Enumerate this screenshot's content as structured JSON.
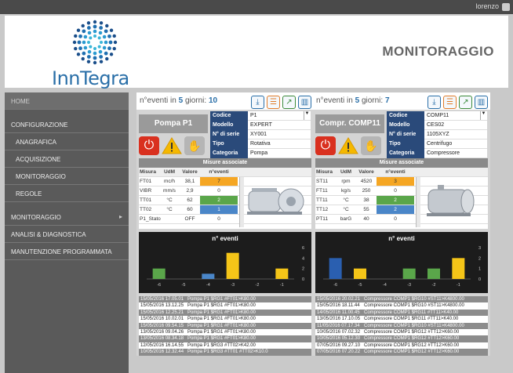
{
  "topbar": {
    "user": "lorenzo"
  },
  "header": {
    "logo_text": "InnTegra",
    "title": "MONITORAGGIO"
  },
  "sidebar": {
    "items": [
      {
        "label": "HOME",
        "sub": false,
        "active": true,
        "arrow": false
      },
      {
        "label": "CONFIGURAZIONE",
        "sub": false,
        "active": false,
        "arrow": false
      },
      {
        "label": "ANAGRAFICA",
        "sub": true,
        "active": false,
        "arrow": false
      },
      {
        "label": "ACQUISIZIONE",
        "sub": true,
        "active": false,
        "arrow": false
      },
      {
        "label": "MONITORAGGIO",
        "sub": true,
        "active": false,
        "arrow": false
      },
      {
        "label": "REGOLE",
        "sub": true,
        "active": false,
        "arrow": false
      },
      {
        "label": "MONITORAGGIO",
        "sub": false,
        "active": false,
        "arrow": true
      },
      {
        "label": "ANALISI & DIAGNOSTICA",
        "sub": false,
        "active": false,
        "arrow": false
      },
      {
        "label": "MANUTENZIONE PROGRAMMATA",
        "sub": false,
        "active": false,
        "arrow": false
      }
    ]
  },
  "panels": [
    {
      "events_prefix": "n°eventi in",
      "days": "5",
      "days_word": "giorni:",
      "count": "10",
      "device": "Pompa P1",
      "info": [
        {
          "k": "Codice",
          "v": "P1",
          "dd": true
        },
        {
          "k": "Modello",
          "v": "EXPERT"
        },
        {
          "k": "N° di serie",
          "v": "XY001"
        },
        {
          "k": "Tipo",
          "v": "Rotativa"
        },
        {
          "k": "Categoria",
          "v": "Pompa"
        }
      ],
      "misure_title": "Misure associate",
      "headers": [
        "Misura",
        "UdM",
        "Valore",
        "n°eventi"
      ],
      "rows": [
        {
          "m": "FT01",
          "u": "mc/h",
          "v": "38,1",
          "n": "7",
          "c": "#f5a623"
        },
        {
          "m": "VIBR",
          "u": "mm/s",
          "v": "2,9",
          "n": "0",
          "c": "#fff"
        },
        {
          "m": "TT01",
          "u": "°C",
          "v": "62",
          "n": "2",
          "c": "#5aa64a"
        },
        {
          "m": "TT02",
          "u": "°C",
          "v": "60",
          "n": "1",
          "c": "#4a86c8"
        },
        {
          "m": "P1_Stato",
          "u": "",
          "v": "OFF",
          "n": "0",
          "c": "#fff"
        }
      ],
      "chart_data": {
        "type": "bar",
        "title": "n° eventi",
        "categories": [
          "-6",
          "-5",
          "-4",
          "-3",
          "-2",
          "-1"
        ],
        "values": [
          2,
          0,
          1,
          5,
          0,
          2
        ],
        "colors": [
          "#5aa64a",
          "#5aa64a",
          "#4a86c8",
          "#f5c518",
          "#f5c518",
          "#f5c518"
        ],
        "ylim": [
          0,
          6
        ],
        "yticks": [
          "0",
          "2",
          "4",
          "6"
        ]
      },
      "log": [
        {
          "d": "15/05/2016 17.05.01",
          "t": "Pompa P1 $RG1 #FT01>K80.00",
          "g": true
        },
        {
          "d": "15/05/2016 13.12.25",
          "t": "Pompa P1 $RG1 #FT01>K80.00",
          "g": false
        },
        {
          "d": "15/05/2016 12.25.21",
          "t": "Pompa P1 $RG1 #FT01>K80.00",
          "g": true
        },
        {
          "d": "15/05/2016 10.02.01",
          "t": "Pompa P1 $RG1 #FT01>K80.00",
          "g": false
        },
        {
          "d": "15/05/2016 09.54.15",
          "t": "Pompa P1 $RG1 #FT01>K80.00",
          "g": true
        },
        {
          "d": "13/05/2016 09.04.26",
          "t": "Pompa P1 $RG1 #FT01>K80.00",
          "g": false
        },
        {
          "d": "13/05/2016 08.34.18",
          "t": "Pompa P1 $RG1 #FT01>K80.00",
          "g": true
        },
        {
          "d": "12/05/2016 16.14.55",
          "t": "Pompa P1 $RG3 #TT02>K42.00",
          "g": false
        },
        {
          "d": "10/05/2016 12.32.44",
          "t": "Pompa P1 $RG3 #TT01 #TT02>K10.0",
          "g": true
        }
      ]
    },
    {
      "events_prefix": "n°eventi in",
      "days": "5",
      "days_word": "giorni:",
      "count": "7",
      "device": "Compr. COMP11",
      "info": [
        {
          "k": "Codice",
          "v": "COMP11",
          "dd": true
        },
        {
          "k": "Modello",
          "v": "CES02"
        },
        {
          "k": "N° di serie",
          "v": "1105XYZ"
        },
        {
          "k": "Tipo",
          "v": "Centrifugo"
        },
        {
          "k": "Categoria",
          "v": "Compressore"
        }
      ],
      "misure_title": "Misure associate",
      "headers": [
        "Misura",
        "UdM",
        "Valore",
        "n°eventi"
      ],
      "rows": [
        {
          "m": "ST11",
          "u": "rpm",
          "v": "4520",
          "n": "3",
          "c": "#f5a623"
        },
        {
          "m": "FT11",
          "u": "kg/s",
          "v": "250",
          "n": "0",
          "c": "#fff"
        },
        {
          "m": "TT11",
          "u": "°C",
          "v": "38",
          "n": "2",
          "c": "#5aa64a"
        },
        {
          "m": "TT12",
          "u": "°C",
          "v": "55",
          "n": "2",
          "c": "#4a86c8"
        },
        {
          "m": "PT11",
          "u": "barG",
          "v": "40",
          "n": "0",
          "c": "#fff"
        }
      ],
      "chart_data": {
        "type": "bar",
        "title": "n° eventi",
        "categories": [
          "-6",
          "-5",
          "-4",
          "-3",
          "-2",
          "-1"
        ],
        "values": [
          2,
          1,
          0,
          1,
          1,
          2
        ],
        "colors": [
          "#2a5fb0",
          "#f5c518",
          "#5aa64a",
          "#5aa64a",
          "#5aa64a",
          "#f5c518"
        ],
        "ylim": [
          0,
          3
        ],
        "yticks": [
          "0",
          "1",
          "2",
          "3"
        ]
      },
      "log": [
        {
          "d": "15/05/2016 20.02.21",
          "t": "Compressore COMP1 $RG10 #ST11>K4800.00",
          "g": true
        },
        {
          "d": "15/05/2016 18.11.44",
          "t": "Compressore COMP1 $RG10 #ST11>K4800.00",
          "g": false
        },
        {
          "d": "14/05/2016 11.00.45",
          "t": "Compressore COMP1 $RG11 #TT11>K40.00",
          "g": true
        },
        {
          "d": "13/05/2016 17.10.05",
          "t": "Compressore COMP1 $RG11 #TT11>K40.00",
          "g": false
        },
        {
          "d": "11/05/2016 07.17.34",
          "t": "Compressore COMP1 $RG10 #ST11>K4800.00",
          "g": true
        },
        {
          "d": "10/05/2016 07.02.32",
          "t": "Compressore COMP1 $RG12 #TT12>K60.00",
          "g": false
        },
        {
          "d": "10/05/2016 05.12.30",
          "t": "Compressore COMP1 $RG12 #TT12>K60.00",
          "g": true
        },
        {
          "d": "07/05/2016 09.27.10",
          "t": "Compressore COMP1 $RG12 #TT12>K60.00",
          "g": false
        },
        {
          "d": "07/05/2016 07.20.22",
          "t": "Compressore COMP1 $RG12 #TT12>K60.00",
          "g": true
        }
      ]
    }
  ]
}
